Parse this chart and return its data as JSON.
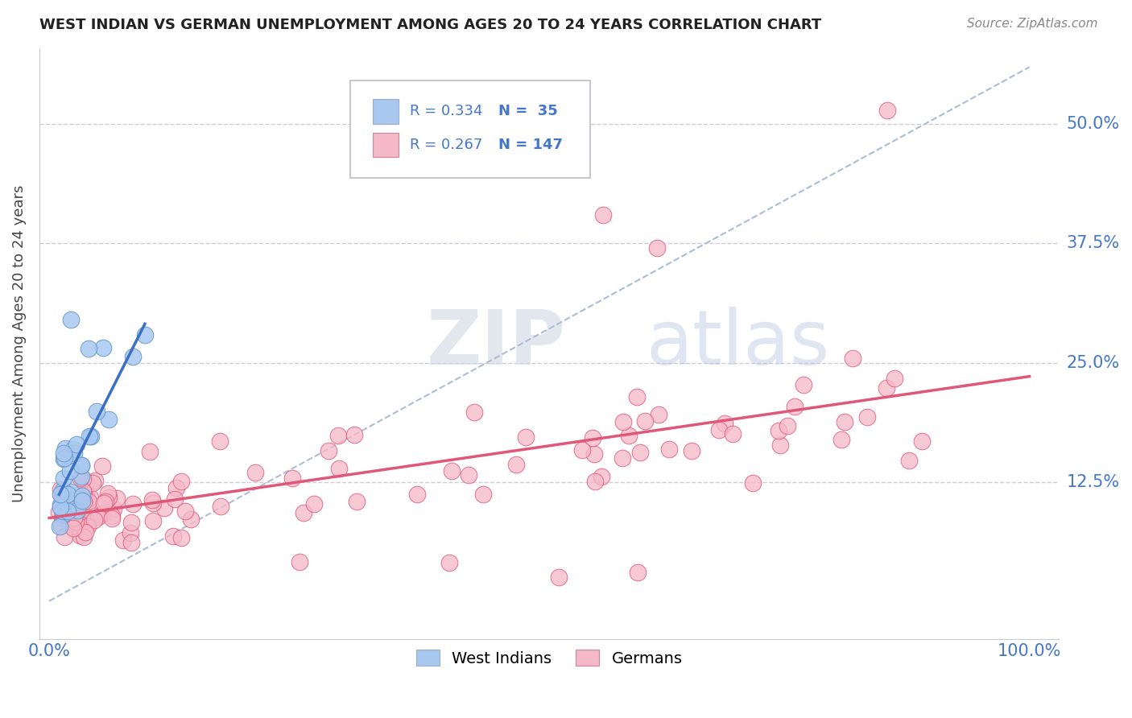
{
  "title": "WEST INDIAN VS GERMAN UNEMPLOYMENT AMONG AGES 20 TO 24 YEARS CORRELATION CHART",
  "source": "Source: ZipAtlas.com",
  "ylabel": "Unemployment Among Ages 20 to 24 years",
  "xlim": [
    -0.01,
    1.03
  ],
  "ylim": [
    -0.04,
    0.58
  ],
  "xtick_vals": [
    0.0,
    1.0
  ],
  "xtick_labels": [
    "0.0%",
    "100.0%"
  ],
  "ytick_vals": [
    0.125,
    0.25,
    0.375,
    0.5
  ],
  "ytick_labels": [
    "12.5%",
    "25.0%",
    "37.5%",
    "50.0%"
  ],
  "color_west_indian": "#a8c8f0",
  "color_german": "#f5b8c8",
  "color_line_wi": "#3a6fc4",
  "color_line_german": "#e05878",
  "color_diag": "#aabcd8",
  "color_grid": "#ccccdd",
  "color_axis_label": "#4477cc",
  "watermark_color": "#d0dce8",
  "wi_seed": 42,
  "g_seed": 7
}
